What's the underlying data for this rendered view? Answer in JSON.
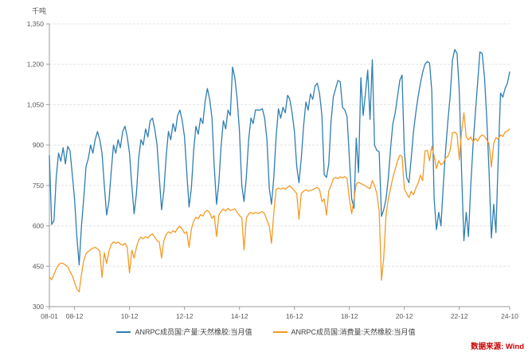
{
  "unit_label": "千吨",
  "source_label": "数据来源: Wind",
  "colors": {
    "production_line": "#2e7eb3",
    "consumption_line": "#f59a23",
    "source_text": "#cc0000"
  },
  "chart_data": {
    "type": "line",
    "title": "",
    "ylabel": "千吨",
    "ylim": [
      300,
      1350
    ],
    "y_ticks": [
      300,
      450,
      600,
      750,
      900,
      1050,
      1200,
      1350
    ],
    "x_start": "2008-01",
    "x_end": "2024-10",
    "x_tick_labels": [
      "08-01",
      "08-12",
      "10-12",
      "12-12",
      "14-12",
      "16-12",
      "18-12",
      "20-12",
      "22-12",
      "24-10"
    ],
    "x_tick_month_index": [
      0,
      11,
      35,
      59,
      83,
      107,
      131,
      155,
      179,
      201
    ],
    "grid": "horizontal-dashed",
    "legend_position": "bottom",
    "series": [
      {
        "name": "ANRPC成员国:产量:天然橡胶:当月值",
        "color": "#2e7eb3",
        "values": [
          860,
          605,
          620,
          780,
          870,
          840,
          890,
          830,
          895,
          880,
          790,
          700,
          560,
          455,
          600,
          700,
          820,
          850,
          900,
          870,
          920,
          950,
          920,
          870,
          750,
          640,
          690,
          800,
          900,
          870,
          920,
          890,
          950,
          970,
          930,
          870,
          750,
          645,
          720,
          850,
          920,
          900,
          960,
          930,
          990,
          1000,
          960,
          900,
          780,
          660,
          730,
          860,
          950,
          920,
          980,
          950,
          1010,
          1030,
          990,
          930,
          800,
          670,
          740,
          880,
          970,
          940,
          1000,
          980,
          1060,
          1110,
          1070,
          1000,
          820,
          680,
          760,
          900,
          990,
          960,
          1030,
          1010,
          1190,
          1150,
          1070,
          950,
          750,
          690,
          780,
          920,
          1000,
          980,
          1030,
          1030,
          1030,
          1035,
          1000,
          920,
          740,
          680,
          780,
          930,
          1035,
          1000,
          1040,
          1020,
          1085,
          1070,
          1020,
          950,
          820,
          760,
          850,
          970,
          1060,
          1030,
          1090,
          1070,
          1120,
          1130,
          1090,
          1010,
          790,
          780,
          830,
          990,
          1080,
          1110,
          1140,
          1135,
          1040,
          1030,
          1005,
          850,
          700,
          665,
          926,
          798,
          1150,
          1010,
          1090,
          1178,
          995,
          1217,
          900,
          880,
          875,
          635,
          660,
          700,
          778,
          890,
          980,
          1020,
          1080,
          1140,
          1160,
          877,
          780,
          760,
          850,
          950,
          1020,
          1080,
          1130,
          1170,
          1200,
          1210,
          1205,
          1100,
          700,
          586,
          650,
          600,
          750,
          880,
          990,
          1080,
          1215,
          1255,
          1240,
          1100,
          800,
          545,
          650,
          560,
          750,
          900,
          1020,
          1130,
          1246,
          1240,
          1150,
          1000,
          800,
          555,
          680,
          575,
          850,
          1093,
          1078,
          1110,
          1130,
          1172
        ]
      },
      {
        "name": "ANRPC成员国:消费量:天然橡胶:当月值",
        "color": "#f59a23",
        "values": [
          410,
          400,
          420,
          440,
          455,
          462,
          460,
          455,
          448,
          430,
          415,
          390,
          365,
          355,
          420,
          470,
          497,
          505,
          512,
          517,
          520,
          515,
          505,
          408,
          500,
          460,
          505,
          530,
          541,
          535,
          540,
          532,
          528,
          535,
          520,
          425,
          510,
          480,
          520,
          548,
          558,
          552,
          560,
          555,
          565,
          570,
          558,
          545,
          540,
          480,
          545,
          568,
          578,
          572,
          582,
          576,
          592,
          598,
          588,
          572,
          578,
          520,
          588,
          618,
          632,
          626,
          642,
          636,
          652,
          658,
          648,
          628,
          638,
          560,
          640,
          654,
          663,
          655,
          665,
          657,
          660,
          663,
          650,
          638,
          630,
          510,
          628,
          644,
          650,
          645,
          650,
          646,
          650,
          653,
          645,
          620,
          600,
          535,
          650,
          735,
          740,
          736,
          741,
          736,
          744,
          748,
          740,
          730,
          720,
          625,
          720,
          729,
          734,
          729,
          731,
          734,
          739,
          743,
          734,
          690,
          700,
          640,
          730,
          750,
          775,
          780,
          775,
          782,
          778,
          783,
          775,
          700,
          645,
          700,
          755,
          762,
          757,
          753,
          748,
          743,
          738,
          768,
          750,
          720,
          655,
          398,
          480,
          640,
          700,
          740,
          780,
          810,
          840,
          862,
          858,
          738,
          720,
          705,
          728,
          715,
          740,
          758,
          788,
          768,
          877,
          880,
          842,
          895,
          860,
          813,
          842,
          827,
          832,
          852,
          858,
          880,
          945,
          948,
          940,
          845,
          950,
          1020,
          930,
          920,
          930,
          912,
          925,
          915,
          930,
          938,
          932,
          920,
          905,
          818,
          905,
          928,
          922,
          938,
          932,
          948,
          952,
          960
        ]
      }
    ]
  }
}
